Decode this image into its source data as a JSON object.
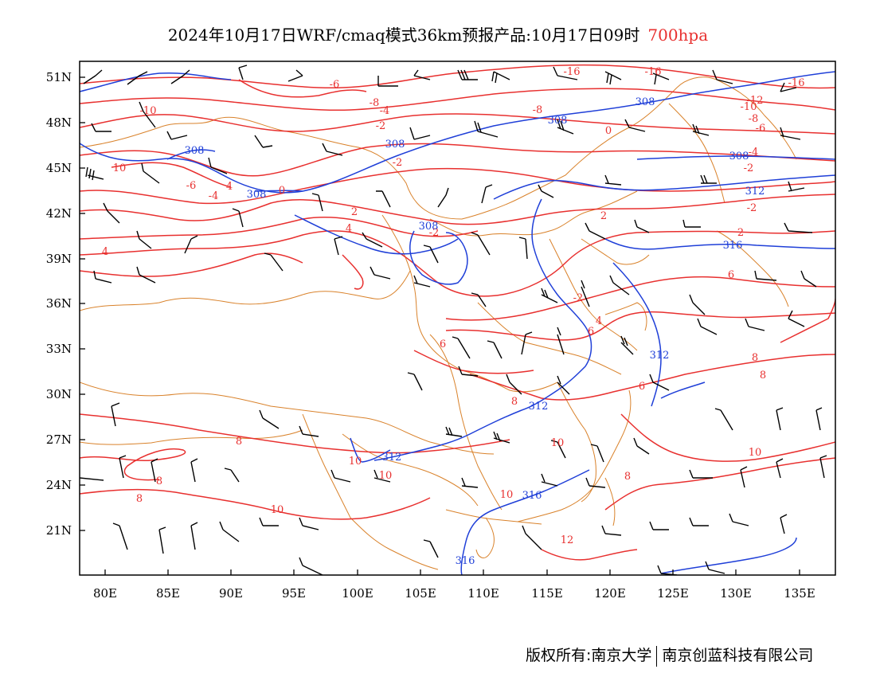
{
  "header": {
    "title": "2024年10月17日WRF/cmaq模式36km预报产品:10月17日09时",
    "level": "700hpa"
  },
  "axes": {
    "lon_labels": [
      "80E",
      "85E",
      "90E",
      "95E",
      "100E",
      "105E",
      "110E",
      "115E",
      "120E",
      "125E",
      "130E",
      "135E"
    ],
    "lat_labels": [
      "51N",
      "48N",
      "45N",
      "42N",
      "39N",
      "36N",
      "33N",
      "30N",
      "27N",
      "24N",
      "21N"
    ]
  },
  "legend": {
    "height_labels": [
      "308",
      "308",
      "308",
      "308",
      "308",
      "308",
      "308",
      "312",
      "312",
      "312",
      "312",
      "316",
      "316",
      "316"
    ],
    "temp_labels": [
      "-16",
      "-16",
      "-16",
      "-12",
      "-10",
      "-10",
      "-8",
      "-8",
      "-8",
      "-6",
      "-6",
      "-6",
      "-4",
      "-4",
      "-4",
      "-2",
      "-2",
      "-2",
      "-2",
      "-2",
      "-2",
      "0",
      "0",
      "2",
      "2",
      "2",
      "4",
      "4",
      "4",
      "4",
      "6",
      "6",
      "6",
      "6",
      "8",
      "8",
      "8",
      "8",
      "8",
      "8",
      "8",
      "10",
      "10",
      "10",
      "10",
      "10",
      "10",
      "10",
      "12"
    ]
  },
  "colors": {
    "temperature": "#e8302f",
    "height": "#1f3fd8",
    "border": "#d9822b",
    "wind": "#000000",
    "frame": "#000000"
  },
  "footer": {
    "left": "版权所有:南京大学",
    "right": "南京创蓝科技有限公司"
  }
}
